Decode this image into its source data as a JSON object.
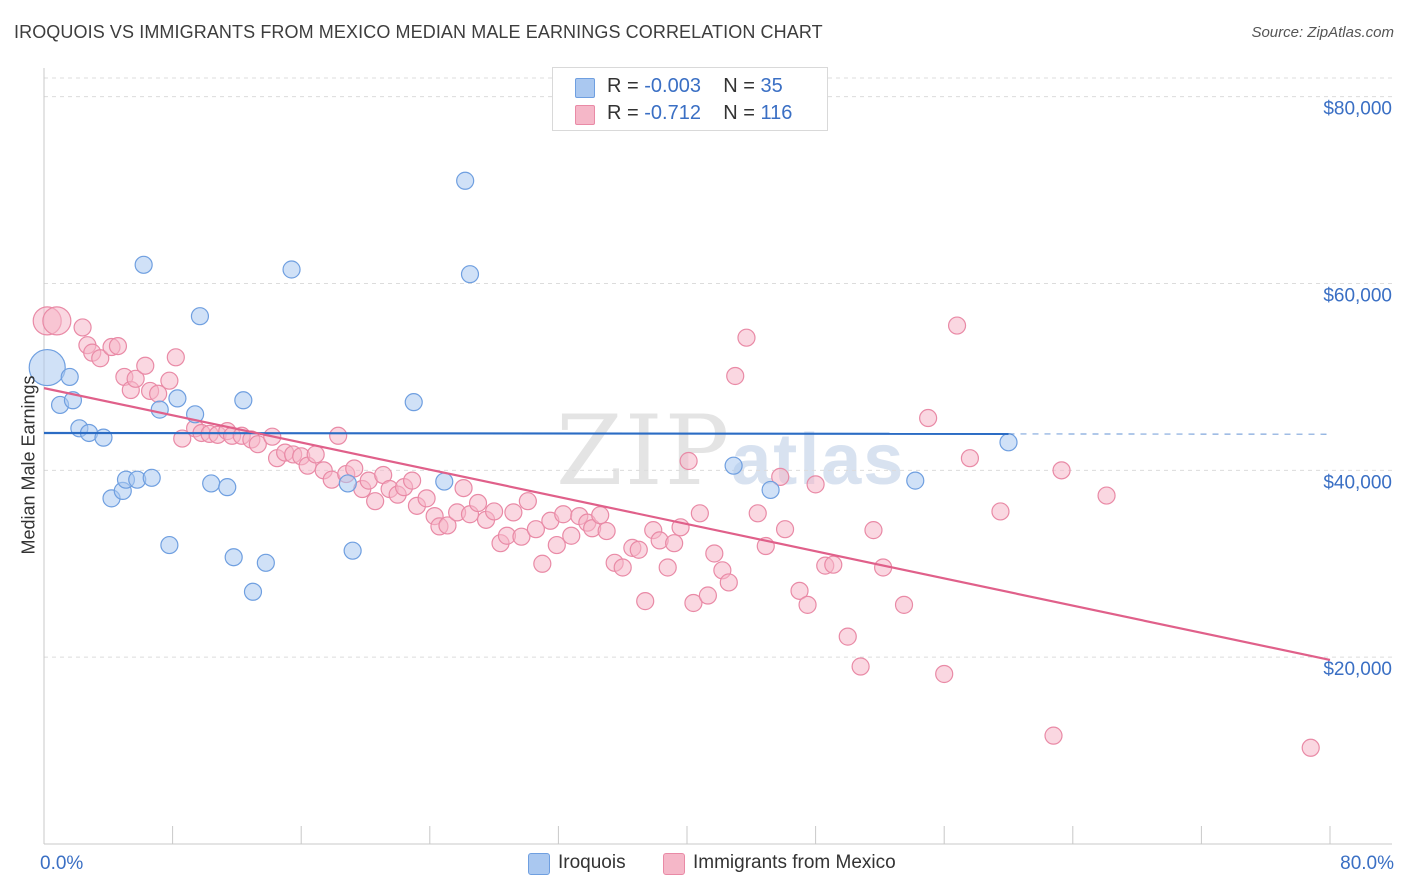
{
  "title": "IROQUOIS VS IMMIGRANTS FROM MEXICO MEDIAN MALE EARNINGS CORRELATION CHART",
  "source": "Source: ZipAtlas.com",
  "watermark": {
    "zip": "ZIP",
    "atlas": "atlas"
  },
  "legend": {
    "rows": [
      {
        "r_label": "R =",
        "r_value": "-0.003",
        "n_label": "N =",
        "n_value": "35",
        "color": "#aac8f0"
      },
      {
        "r_label": "R =",
        "r_value": "-0.712",
        "n_label": "N =",
        "n_value": "116",
        "color": "#f5b7c8"
      }
    ]
  },
  "colors": {
    "blue_fill": "#aac8f0",
    "blue_stroke": "#6f9fe0",
    "blue_line": "#2b6cc4",
    "pink_fill": "#f5b7c8",
    "pink_stroke": "#e98aa6",
    "pink_line": "#e0608a",
    "tick_label": "#3a6fc4"
  },
  "chart_data": {
    "type": "scatter",
    "xlabel": "",
    "ylabel": "Median Male Earnings",
    "xlim": [
      0,
      80
    ],
    "ylim": [
      0,
      82000
    ],
    "x_tick_labels": [
      "0.0%",
      "80.0%"
    ],
    "y_ticks": [
      20000,
      40000,
      60000,
      80000
    ],
    "y_tick_labels": [
      "$20,000",
      "$40,000",
      "$60,000",
      "$80,000"
    ],
    "grid": true,
    "legend_position": "top-center",
    "series": [
      {
        "name": "Iroquois",
        "trend": {
          "x": [
            0,
            60
          ],
          "y": [
            44000,
            43900
          ],
          "dashed_extension_to_x": 80
        },
        "points": [
          [
            0.2,
            51000
          ],
          [
            1.0,
            47000
          ],
          [
            1.6,
            50000
          ],
          [
            1.8,
            47500
          ],
          [
            2.2,
            44500
          ],
          [
            2.8,
            44000
          ],
          [
            3.7,
            43500
          ],
          [
            4.2,
            37000
          ],
          [
            4.9,
            37800
          ],
          [
            5.1,
            39000
          ],
          [
            5.8,
            39000
          ],
          [
            6.2,
            62000
          ],
          [
            6.7,
            39200
          ],
          [
            7.2,
            46500
          ],
          [
            7.8,
            32000
          ],
          [
            8.3,
            47700
          ],
          [
            9.4,
            46000
          ],
          [
            9.7,
            56500
          ],
          [
            10.4,
            38600
          ],
          [
            11.4,
            38200
          ],
          [
            11.8,
            30700
          ],
          [
            12.4,
            47500
          ],
          [
            13.0,
            27000
          ],
          [
            13.8,
            30100
          ],
          [
            15.4,
            61500
          ],
          [
            18.9,
            38600
          ],
          [
            19.2,
            31400
          ],
          [
            23.0,
            47300
          ],
          [
            24.9,
            38800
          ],
          [
            26.2,
            71000
          ],
          [
            26.5,
            61000
          ],
          [
            42.9,
            40500
          ],
          [
            45.2,
            37900
          ],
          [
            54.2,
            38900
          ],
          [
            60.0,
            43000
          ]
        ]
      },
      {
        "name": "Immigrants from Mexico",
        "trend": {
          "x": [
            0,
            80
          ],
          "y": [
            48800,
            19700
          ]
        },
        "points": [
          [
            0.2,
            56000
          ],
          [
            0.8,
            56000
          ],
          [
            2.4,
            55300
          ],
          [
            2.7,
            53400
          ],
          [
            3.0,
            52600
          ],
          [
            3.5,
            52000
          ],
          [
            4.2,
            53200
          ],
          [
            4.6,
            53300
          ],
          [
            5.0,
            50000
          ],
          [
            5.4,
            48600
          ],
          [
            5.7,
            49800
          ],
          [
            6.3,
            51200
          ],
          [
            6.6,
            48500
          ],
          [
            7.1,
            48200
          ],
          [
            7.8,
            49600
          ],
          [
            8.2,
            52100
          ],
          [
            8.6,
            43400
          ],
          [
            9.4,
            44500
          ],
          [
            9.8,
            44000
          ],
          [
            10.3,
            43900
          ],
          [
            10.8,
            43800
          ],
          [
            11.4,
            44200
          ],
          [
            11.7,
            43700
          ],
          [
            12.3,
            43700
          ],
          [
            12.9,
            43300
          ],
          [
            13.3,
            42800
          ],
          [
            14.2,
            43600
          ],
          [
            14.5,
            41300
          ],
          [
            15.0,
            41900
          ],
          [
            15.5,
            41700
          ],
          [
            16.0,
            41500
          ],
          [
            16.4,
            40500
          ],
          [
            16.9,
            41700
          ],
          [
            17.4,
            40000
          ],
          [
            17.9,
            39000
          ],
          [
            18.3,
            43700
          ],
          [
            18.8,
            39600
          ],
          [
            19.3,
            40200
          ],
          [
            19.8,
            38000
          ],
          [
            20.2,
            38900
          ],
          [
            20.6,
            36700
          ],
          [
            21.1,
            39500
          ],
          [
            21.5,
            38000
          ],
          [
            22.0,
            37400
          ],
          [
            22.4,
            38200
          ],
          [
            22.9,
            38900
          ],
          [
            23.2,
            36200
          ],
          [
            23.8,
            37000
          ],
          [
            24.3,
            35100
          ],
          [
            24.6,
            34000
          ],
          [
            25.1,
            34100
          ],
          [
            25.7,
            35500
          ],
          [
            26.1,
            38100
          ],
          [
            26.5,
            35300
          ],
          [
            27.0,
            36500
          ],
          [
            27.5,
            34700
          ],
          [
            28.0,
            35600
          ],
          [
            28.4,
            32200
          ],
          [
            28.8,
            33000
          ],
          [
            29.2,
            35500
          ],
          [
            29.7,
            32900
          ],
          [
            30.1,
            36700
          ],
          [
            30.6,
            33700
          ],
          [
            31.0,
            30000
          ],
          [
            31.5,
            34600
          ],
          [
            31.9,
            32000
          ],
          [
            32.3,
            35300
          ],
          [
            32.8,
            33000
          ],
          [
            33.3,
            35100
          ],
          [
            33.8,
            34400
          ],
          [
            34.1,
            33800
          ],
          [
            34.6,
            35200
          ],
          [
            35.0,
            33500
          ],
          [
            35.5,
            30100
          ],
          [
            36.0,
            29600
          ],
          [
            36.6,
            31700
          ],
          [
            37.0,
            31500
          ],
          [
            37.4,
            26000
          ],
          [
            37.9,
            33600
          ],
          [
            38.3,
            32500
          ],
          [
            38.8,
            29600
          ],
          [
            39.2,
            32200
          ],
          [
            39.6,
            33900
          ],
          [
            40.1,
            41000
          ],
          [
            40.4,
            25800
          ],
          [
            40.8,
            35400
          ],
          [
            41.3,
            26600
          ],
          [
            41.7,
            31100
          ],
          [
            42.2,
            29300
          ],
          [
            42.6,
            28000
          ],
          [
            43.0,
            50100
          ],
          [
            43.7,
            54200
          ],
          [
            44.4,
            35400
          ],
          [
            44.9,
            31900
          ],
          [
            45.8,
            39300
          ],
          [
            46.1,
            33700
          ],
          [
            47.0,
            27100
          ],
          [
            47.5,
            25600
          ],
          [
            48.0,
            38500
          ],
          [
            48.6,
            29800
          ],
          [
            49.1,
            29900
          ],
          [
            50.0,
            22200
          ],
          [
            50.8,
            19000
          ],
          [
            51.6,
            33600
          ],
          [
            52.2,
            29600
          ],
          [
            53.5,
            25600
          ],
          [
            55.0,
            45600
          ],
          [
            56.0,
            18200
          ],
          [
            56.8,
            55500
          ],
          [
            57.6,
            41300
          ],
          [
            59.5,
            35600
          ],
          [
            62.8,
            11600
          ],
          [
            63.3,
            40000
          ],
          [
            66.1,
            37300
          ],
          [
            78.8,
            10300
          ]
        ]
      }
    ]
  }
}
